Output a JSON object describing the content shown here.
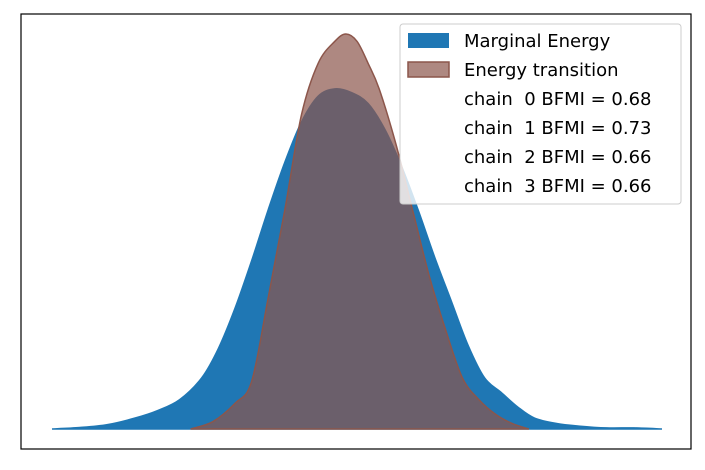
{
  "chart_data": {
    "type": "area",
    "xaxis_ticks": "hidden",
    "yaxis_ticks": "hidden",
    "grid": false,
    "legend_position": "top-right",
    "series": [
      {
        "name": "Marginal Energy",
        "color": "#1f77b4",
        "x": [
          -5.5,
          -5.0,
          -4.5,
          -4.0,
          -3.6,
          -3.2,
          -2.8,
          -2.5,
          -2.2,
          -1.9,
          -1.6,
          -1.3,
          -1.0,
          -0.7,
          -0.4,
          -0.1,
          0.2,
          0.5,
          0.8,
          1.1,
          1.4,
          1.7,
          2.0,
          2.3,
          2.6,
          2.9,
          3.2,
          3.6,
          4.0,
          4.5,
          5.0,
          5.5
        ],
        "y": [
          0.0,
          0.004,
          0.012,
          0.03,
          0.05,
          0.08,
          0.14,
          0.22,
          0.33,
          0.46,
          0.6,
          0.73,
          0.84,
          0.91,
          0.93,
          0.92,
          0.89,
          0.82,
          0.72,
          0.6,
          0.47,
          0.35,
          0.23,
          0.14,
          0.1,
          0.06,
          0.03,
          0.015,
          0.008,
          0.003,
          0.003,
          0.0
        ]
      },
      {
        "name": "Energy transition",
        "color": "#8c564b",
        "x": [
          -3.0,
          -2.6,
          -2.2,
          -1.9,
          -1.6,
          -1.3,
          -1.0,
          -0.7,
          -0.4,
          -0.2,
          0.0,
          0.2,
          0.4,
          0.7,
          1.0,
          1.3,
          1.6,
          1.9,
          2.2,
          2.5,
          2.8,
          3.1
        ],
        "y": [
          0.0,
          0.02,
          0.07,
          0.13,
          0.36,
          0.6,
          0.86,
          1.0,
          1.06,
          1.08,
          1.06,
          1.0,
          0.93,
          0.78,
          0.6,
          0.42,
          0.27,
          0.14,
          0.08,
          0.04,
          0.015,
          0.0
        ]
      }
    ],
    "legend": {
      "entries": [
        "Marginal Energy",
        "Energy transition",
        "chain  0 BFMI = 0.68",
        "chain  1 BFMI = 0.73",
        "chain  2 BFMI = 0.66",
        "chain  3 BFMI = 0.66"
      ]
    }
  }
}
